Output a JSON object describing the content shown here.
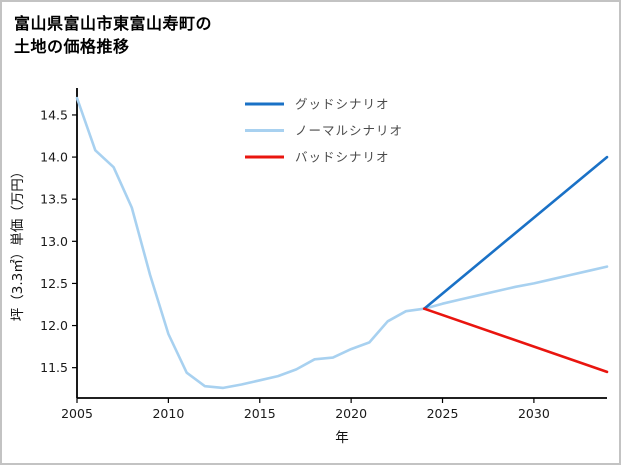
{
  "header": {
    "title_line1": "富山県富山市東富山寿町の",
    "title_line2": "土地の価格推移"
  },
  "chart_data": {
    "type": "line",
    "title": "富山県富山市東富山寿町の土地の価格推移",
    "xlabel": "年",
    "ylabel": "坪（3.3㎡）単価（万円）",
    "xlim": [
      2005,
      2034
    ],
    "ylim": [
      11.14,
      14.82
    ],
    "grid": false,
    "legend_position": "upper center",
    "axis_color": "#000000",
    "tick_label_color": "#1a1a1a",
    "legend_text_color": "#4a4a4a",
    "xticks": [
      {
        "v": 2005,
        "label": "2005"
      },
      {
        "v": 2010,
        "label": "2010"
      },
      {
        "v": 2015,
        "label": "2015"
      },
      {
        "v": 2020,
        "label": "2020"
      },
      {
        "v": 2025,
        "label": "2025"
      },
      {
        "v": 2030,
        "label": "2030"
      }
    ],
    "yticks": [
      {
        "v": 11.5,
        "label": "11.5"
      },
      {
        "v": 12.0,
        "label": "12.0"
      },
      {
        "v": 12.5,
        "label": "12.5"
      },
      {
        "v": 13.0,
        "label": "13.0"
      },
      {
        "v": 13.5,
        "label": "13.5"
      },
      {
        "v": 14.0,
        "label": "14.0"
      },
      {
        "v": 14.5,
        "label": "14.5"
      }
    ],
    "series": [
      {
        "key": "good-scenario",
        "name": "グッドシナリオ",
        "color": "#1a71c6",
        "width": 2.6,
        "zorder": 2,
        "x": [
          2024,
          2034
        ],
        "y": [
          12.2,
          14.0
        ]
      },
      {
        "key": "normal-scenario",
        "name": "ノーマルシナリオ",
        "color": "#a8d1f0",
        "width": 2.6,
        "zorder": 1,
        "x": [
          2005,
          2006,
          2007,
          2008,
          2009,
          2010,
          2011,
          2012,
          2013,
          2014,
          2015,
          2016,
          2017,
          2018,
          2019,
          2020,
          2021,
          2022,
          2023,
          2024,
          2025,
          2026,
          2027,
          2028,
          2029,
          2030,
          2031,
          2032,
          2033,
          2034
        ],
        "y": [
          14.7,
          14.08,
          13.88,
          13.4,
          12.6,
          11.9,
          11.44,
          11.28,
          11.26,
          11.3,
          11.35,
          11.4,
          11.48,
          11.6,
          11.62,
          11.72,
          11.8,
          12.05,
          12.17,
          12.2,
          12.26,
          12.31,
          12.36,
          12.41,
          12.46,
          12.5,
          12.55,
          12.6,
          12.65,
          12.7
        ]
      },
      {
        "key": "bad-scenario",
        "name": "バッドシナリオ",
        "color": "#e9150f",
        "width": 2.6,
        "zorder": 3,
        "x": [
          2024,
          2034
        ],
        "y": [
          12.2,
          11.45
        ]
      }
    ]
  }
}
